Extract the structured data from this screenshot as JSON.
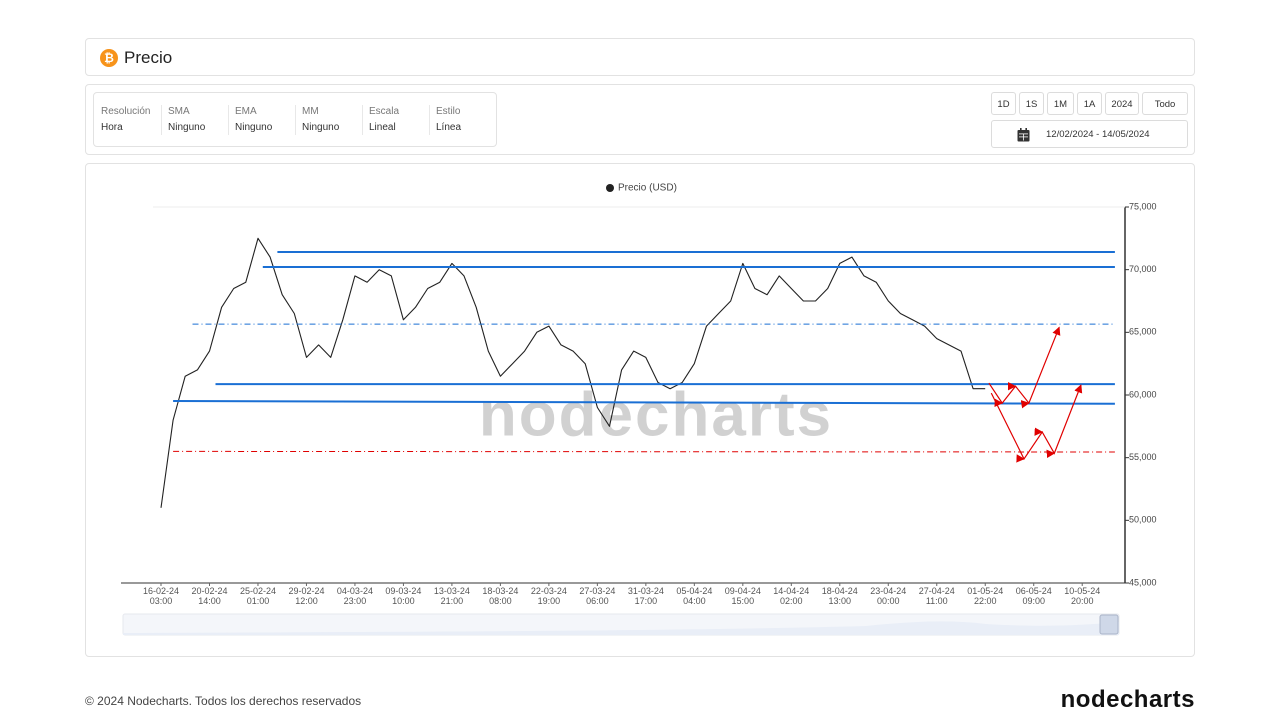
{
  "header": {
    "title": "Precio"
  },
  "settings": [
    {
      "label": "Resolución",
      "value": "Hora"
    },
    {
      "label": "SMA",
      "value": "Ninguno"
    },
    {
      "label": "EMA",
      "value": "Ninguno"
    },
    {
      "label": "MM",
      "value": "Ninguno"
    },
    {
      "label": "Escala",
      "value": "Lineal"
    },
    {
      "label": "Estilo",
      "value": "Línea"
    }
  ],
  "range_buttons": [
    "1D",
    "1S",
    "1M",
    "1A",
    "2024",
    "Todo"
  ],
  "date_range": "12/02/2024 - 14/05/2024",
  "chart_data": {
    "type": "line",
    "watermark": "nodecharts",
    "x": [
      0,
      1,
      2,
      3,
      4,
      5,
      6,
      7,
      8,
      9,
      10,
      11,
      12,
      13,
      14,
      15,
      16,
      17,
      18,
      19,
      20,
      21,
      22,
      23,
      24,
      25,
      26,
      27,
      28,
      29,
      30,
      31,
      32,
      33,
      34,
      35,
      36,
      37,
      38,
      39,
      40,
      41,
      42,
      43,
      44,
      45,
      46,
      47,
      48,
      49,
      50,
      51,
      52,
      53,
      54,
      55,
      56,
      57,
      58,
      59,
      60,
      61,
      62,
      63,
      64,
      65,
      66,
      67,
      68
    ],
    "series": [
      {
        "name": "Precio (USD)",
        "color": "#222222",
        "values": [
          51000,
          58000,
          61500,
          62000,
          63500,
          67000,
          68500,
          69000,
          72500,
          71000,
          68000,
          66500,
          63000,
          64000,
          63000,
          66000,
          69500,
          69000,
          70000,
          69500,
          66000,
          67000,
          68500,
          69000,
          70500,
          69500,
          67000,
          63500,
          61500,
          62500,
          63500,
          65000,
          65500,
          64000,
          63500,
          62500,
          59000,
          57500,
          62000,
          63500,
          63000,
          61000,
          60500,
          61000,
          62500,
          65500,
          66500,
          67500,
          70500,
          68500,
          68000,
          69500,
          68500,
          67500,
          67500,
          68500,
          70500,
          71000,
          69500,
          69000,
          67500,
          66500,
          66000,
          65500,
          64500,
          64000,
          63500,
          60500,
          60500
        ]
      }
    ],
    "xlim": [
      -3.3,
      79.2
    ],
    "xticks": [
      {
        "value": 0,
        "label": [
          "16-02-24",
          "03:00"
        ]
      },
      {
        "value": 4,
        "label": [
          "20-02-24",
          "14:00"
        ]
      },
      {
        "value": 8,
        "label": [
          "25-02-24",
          "01:00"
        ]
      },
      {
        "value": 12,
        "label": [
          "29-02-24",
          "12:00"
        ]
      },
      {
        "value": 16,
        "label": [
          "04-03-24",
          "23:00"
        ]
      },
      {
        "value": 20,
        "label": [
          "09-03-24",
          "10:00"
        ]
      },
      {
        "value": 24,
        "label": [
          "13-03-24",
          "21:00"
        ]
      },
      {
        "value": 28,
        "label": [
          "18-03-24",
          "08:00"
        ]
      },
      {
        "value": 32,
        "label": [
          "22-03-24",
          "19:00"
        ]
      },
      {
        "value": 36,
        "label": [
          "27-03-24",
          "06:00"
        ]
      },
      {
        "value": 40,
        "label": [
          "31-03-24",
          "17:00"
        ]
      },
      {
        "value": 44,
        "label": [
          "05-04-24",
          "04:00"
        ]
      },
      {
        "value": 48,
        "label": [
          "09-04-24",
          "15:00"
        ]
      },
      {
        "value": 52,
        "label": [
          "14-04-24",
          "02:00"
        ]
      },
      {
        "value": 56,
        "label": [
          "18-04-24",
          "13:00"
        ]
      },
      {
        "value": 60,
        "label": [
          "23-04-24",
          "00:00"
        ]
      },
      {
        "value": 64,
        "label": [
          "27-04-24",
          "11:00"
        ]
      },
      {
        "value": 68,
        "label": [
          "01-05-24",
          "22:00"
        ]
      },
      {
        "value": 72,
        "label": [
          "06-05-24",
          "09:00"
        ]
      },
      {
        "value": 76,
        "label": [
          "10-05-24",
          "20:00"
        ]
      }
    ],
    "ylim": [
      45000,
      75000
    ],
    "yticks": [
      {
        "value": 45000,
        "label": "45,000"
      },
      {
        "value": 50000,
        "label": "50,000"
      },
      {
        "value": 55000,
        "label": "55,000"
      },
      {
        "value": 60000,
        "label": "60,000"
      },
      {
        "value": 65000,
        "label": "65,000"
      },
      {
        "value": 70000,
        "label": "70,000"
      },
      {
        "value": 75000,
        "label": "75,000"
      }
    ],
    "y_axis_side": "right",
    "annotations": [
      {
        "color": "#1a6fd4",
        "style": "solid",
        "x": [
          9.6,
          78.7
        ],
        "y": [
          71410,
          71410
        ]
      },
      {
        "color": "#1a6fd4",
        "style": "solid",
        "x": [
          8.4,
          78.7
        ],
        "y": [
          70210,
          70210
        ]
      },
      {
        "color": "#1a6fd4",
        "style": "dashdot",
        "x": [
          2.6,
          78.7
        ],
        "y": [
          65660,
          65660
        ]
      },
      {
        "color": "#1a6fd4",
        "style": "solid",
        "x": [
          4.5,
          78.7
        ],
        "y": [
          60870,
          60870
        ]
      },
      {
        "color": "#1a6fd4",
        "style": "solid",
        "x": [
          1.0,
          78.7
        ],
        "y": [
          59520,
          59300
        ]
      },
      {
        "color": "#e00000",
        "style": "dashdot",
        "x": [
          1.0,
          78.7
        ],
        "y": [
          55500,
          55450
        ]
      },
      {
        "color": "#e00000",
        "style": "arrows",
        "x": [
          68.3,
          69.4,
          70.5,
          71.6,
          74.1
        ],
        "y": [
          60950,
          59350,
          60700,
          59350,
          65400
        ]
      },
      {
        "color": "#e00000",
        "style": "arrows",
        "x": [
          68.5,
          71.2,
          72.7,
          73.7,
          75.9
        ],
        "y": [
          60150,
          54900,
          57050,
          55350,
          60800
        ]
      }
    ]
  },
  "footer": {
    "copyright": "© 2024 Nodecharts. Todos los derechos reservados",
    "logo": "nodecharts"
  }
}
